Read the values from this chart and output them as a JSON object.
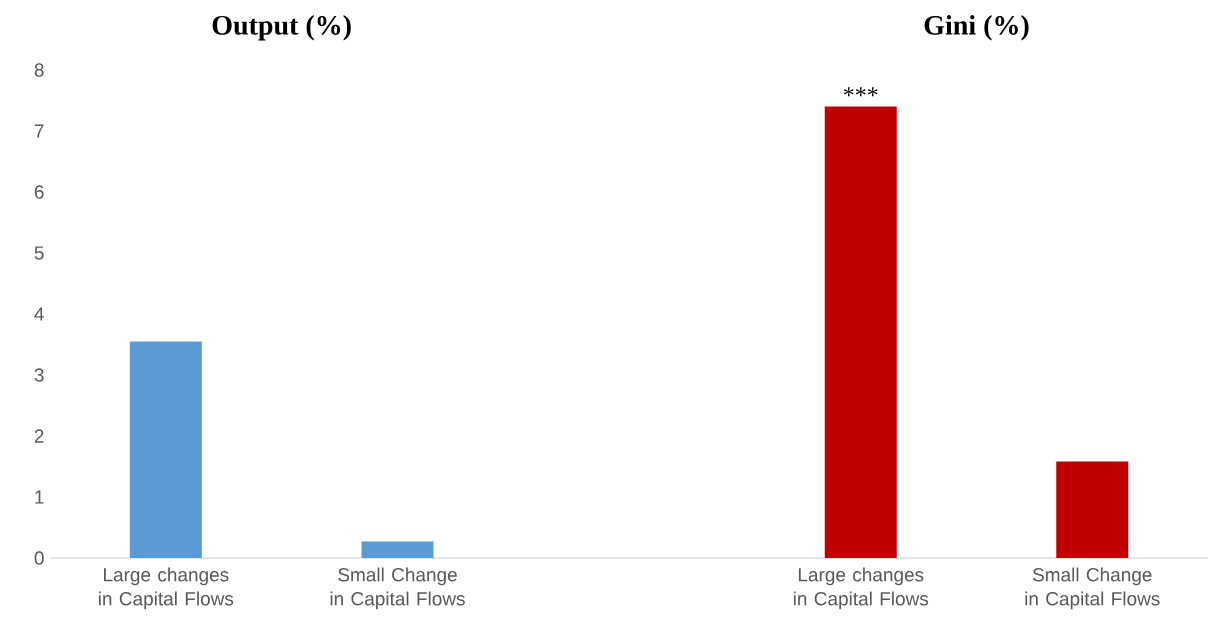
{
  "chart_data": [
    {
      "type": "bar",
      "title": "Output (%)",
      "categories": [
        "Large changes in Capital Flows",
        "Small Change in Capital Flows"
      ],
      "series": [
        {
          "color": "#5b9bd5",
          "values": [
            3.55,
            0.27
          ]
        }
      ],
      "ylim": [
        0,
        8
      ],
      "yticks": [
        0,
        1,
        2,
        3,
        4,
        5,
        6,
        7,
        8
      ]
    },
    {
      "type": "bar",
      "title": "Gini (%)",
      "categories": [
        "Large changes in Capital Flows",
        "Small Change in Capital Flows"
      ],
      "series": [
        {
          "color": "#c00000",
          "values": [
            7.4,
            1.58
          ]
        }
      ],
      "ylim": [
        0,
        8
      ],
      "yticks": [
        0,
        1,
        2,
        3,
        4,
        5,
        6,
        7,
        8
      ],
      "tick_labels": "x",
      "annotations": [
        {
          "text": "***",
          "x": "Large changes in Capital Flows",
          "y": 7.4
        }
      ]
    }
  ]
}
